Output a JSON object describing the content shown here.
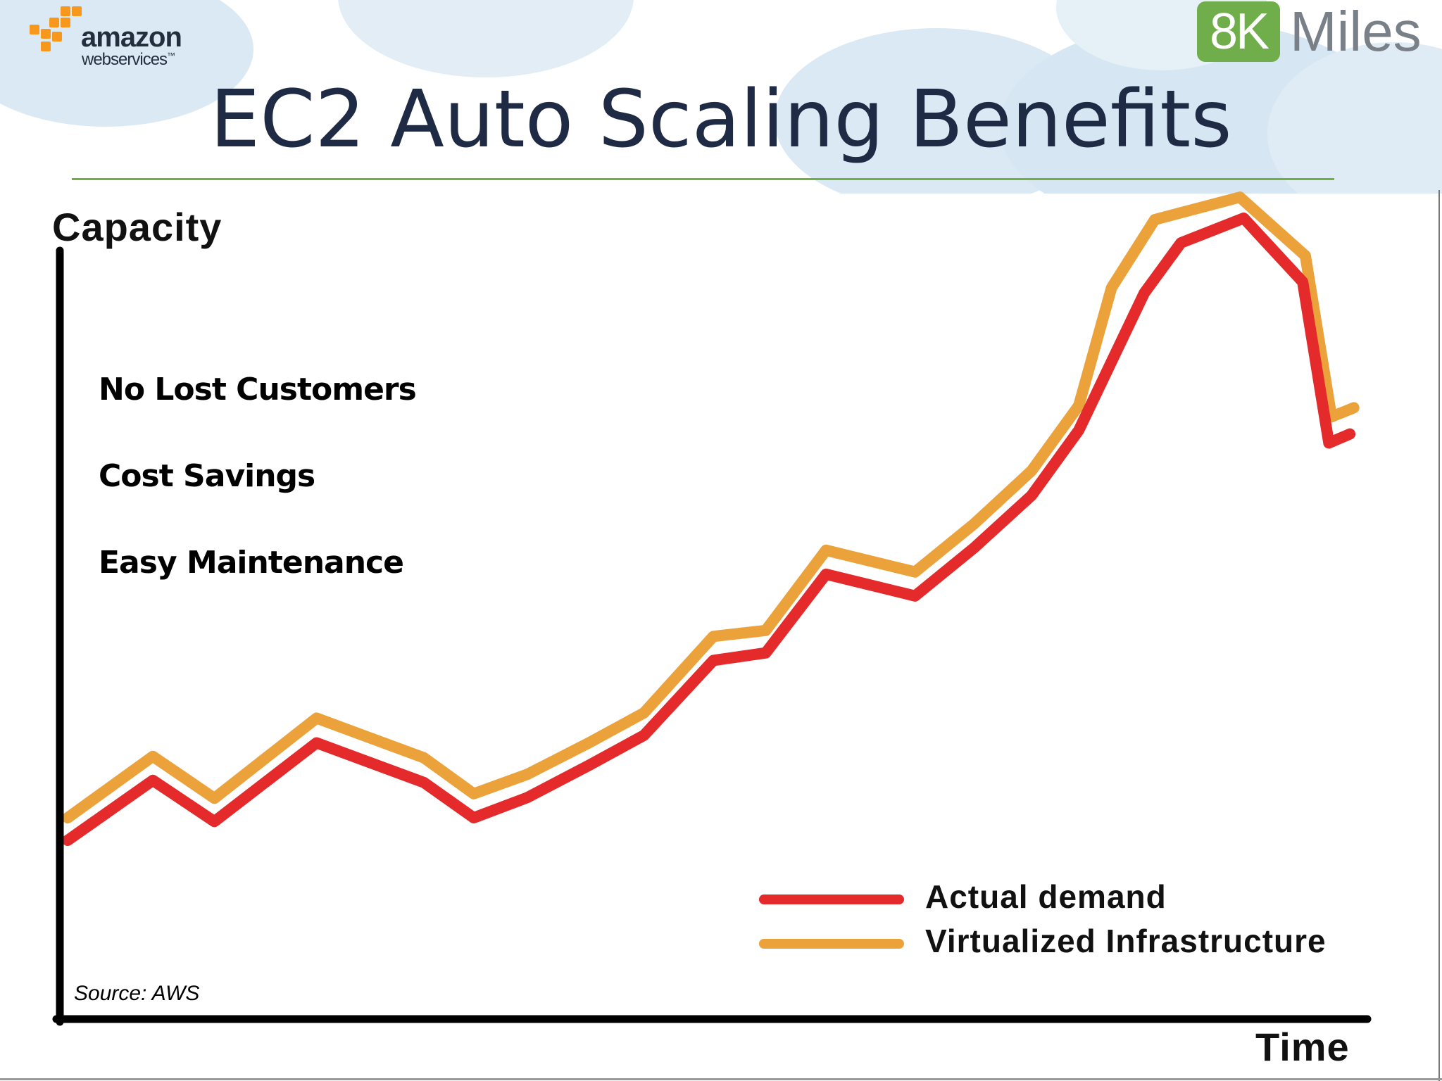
{
  "slide": {
    "title": "EC2 Auto Scaling Benefits",
    "source": "Source: AWS",
    "bullets": [
      "No Lost Customers",
      "Cost Savings",
      "Easy Maintenance"
    ]
  },
  "logos": {
    "aws": {
      "line1": "amazon",
      "line2": "webservices",
      "trademark": "™",
      "color": "#f7981d"
    },
    "miles": {
      "box_text": "8K",
      "text": "Miles",
      "box_color": "#6fae4a"
    }
  },
  "colors": {
    "title": "#1f2a44",
    "rule": "#6fb043",
    "actual": "#e42a2a",
    "virtual": "#eba23a",
    "axis": "#000000"
  },
  "chart_data": {
    "type": "line",
    "title": "",
    "xlabel": "Time",
    "ylabel": "Capacity",
    "xlim": [
      0,
      100
    ],
    "ylim": [
      0,
      100
    ],
    "grid": false,
    "legend_position": "bottom-right",
    "series": [
      {
        "name": "Actual demand",
        "color": "#e42a2a",
        "points": [
          [
            0.6,
            17
          ],
          [
            7.1,
            25
          ],
          [
            11.8,
            19.5
          ],
          [
            19.6,
            30
          ],
          [
            27.8,
            24.7
          ],
          [
            31.6,
            20
          ],
          [
            35.7,
            22.7
          ],
          [
            40.4,
            27
          ],
          [
            44.6,
            31
          ],
          [
            49.9,
            41
          ],
          [
            53.9,
            42
          ],
          [
            58.5,
            52.5
          ],
          [
            65.3,
            49.6
          ],
          [
            69.8,
            56
          ],
          [
            74.2,
            63
          ],
          [
            77.8,
            71.7
          ],
          [
            82.8,
            90
          ],
          [
            85.6,
            96.7
          ],
          [
            90.4,
            100
          ],
          [
            94.9,
            91.5
          ],
          [
            96.9,
            70
          ],
          [
            98.5,
            71.2
          ]
        ]
      },
      {
        "name": "Virtualized Infrastructure",
        "color": "#eba23a",
        "points": [
          [
            0.6,
            20
          ],
          [
            7.1,
            28.2
          ],
          [
            11.8,
            22.6
          ],
          [
            19.6,
            33.3
          ],
          [
            27.8,
            28
          ],
          [
            31.6,
            23.2
          ],
          [
            35.7,
            25.8
          ],
          [
            40.4,
            30
          ],
          [
            44.6,
            34
          ],
          [
            49.9,
            44.2
          ],
          [
            53.9,
            45
          ],
          [
            58.5,
            55.7
          ],
          [
            65.3,
            52.8
          ],
          [
            69.8,
            59.2
          ],
          [
            74.2,
            66.3
          ],
          [
            77.8,
            75
          ],
          [
            80.3,
            90.7
          ],
          [
            83.6,
            99.8
          ],
          [
            90.1,
            102.8
          ],
          [
            95.1,
            95
          ],
          [
            97.1,
            73.5
          ],
          [
            98.8,
            74.7
          ]
        ]
      }
    ]
  }
}
